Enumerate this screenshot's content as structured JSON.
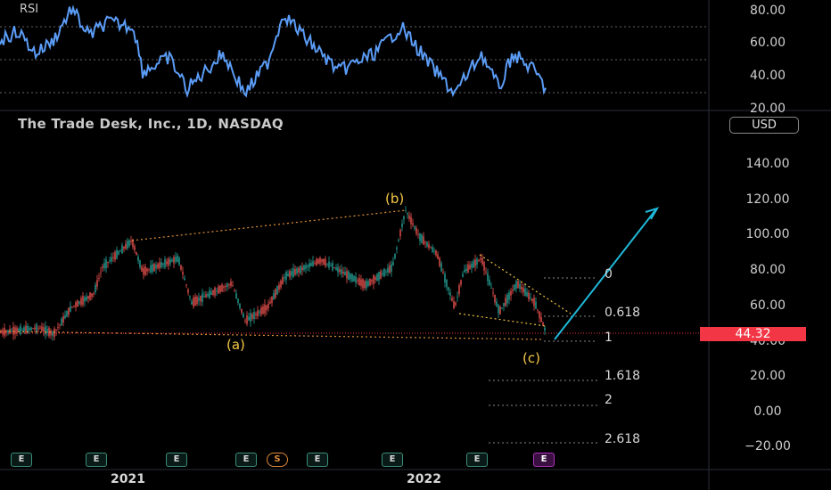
{
  "rsi": {
    "label": "RSI"
  },
  "header": {
    "title": "The Trade Desk, Inc., 1D, NASDAQ",
    "currency": "USD"
  },
  "price": {
    "current": "44.32"
  },
  "rsi_axis": [
    "80.00",
    "60.00",
    "40.00",
    "20.00"
  ],
  "price_axis": [
    "140.00",
    "120.00",
    "100.00",
    "80.00",
    "60.00",
    "40.00",
    "20.00",
    "0.00",
    "−20.00"
  ],
  "waves": {
    "a": "(a)",
    "b": "(b)",
    "c": "(c)"
  },
  "fib_levels": [
    "0",
    "0.618",
    "1",
    "1.618",
    "2",
    "2.618"
  ],
  "years": [
    "2021",
    "2022"
  ],
  "events": {
    "earnings": "E",
    "split": "S"
  },
  "colors": {
    "up": "#26a69a",
    "down": "#ef5350",
    "rsi": "#5b9cf6",
    "projection": "#1fb8d8",
    "wave_label": "#f7c948",
    "badge": "#f23645"
  }
}
